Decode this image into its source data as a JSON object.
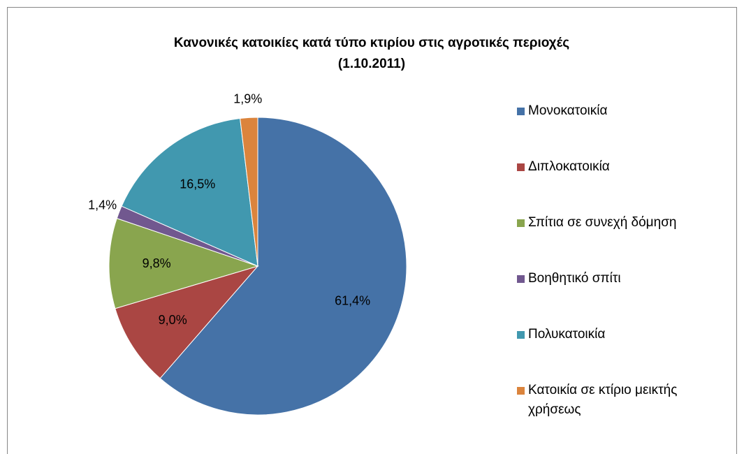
{
  "chart_data": {
    "type": "pie",
    "title": [
      "Κανονικές κατοικίες κατά τύπο κτιρίου στις αγροτικές περιοχές",
      "(1.10.2011)"
    ],
    "categories": [
      "Μονοκατοικία",
      "Διπλοκατοικία",
      "Σπίτια σε συνεχή δόμηση",
      "Βοηθητικό σπίτι",
      "Πολυκατοικία",
      "Κατοικία σε κτίριο μεικτής χρήσεως"
    ],
    "values": [
      61.4,
      9.0,
      9.8,
      1.4,
      16.5,
      1.9
    ],
    "value_labels": [
      "61,4%",
      "9,0%",
      "9,8%",
      "1,4%",
      "16,5%",
      "1,9%"
    ],
    "colors": [
      "#4572a7",
      "#aa4643",
      "#89a54e",
      "#71588f",
      "#4198af",
      "#db843d"
    ],
    "legend": "right"
  }
}
